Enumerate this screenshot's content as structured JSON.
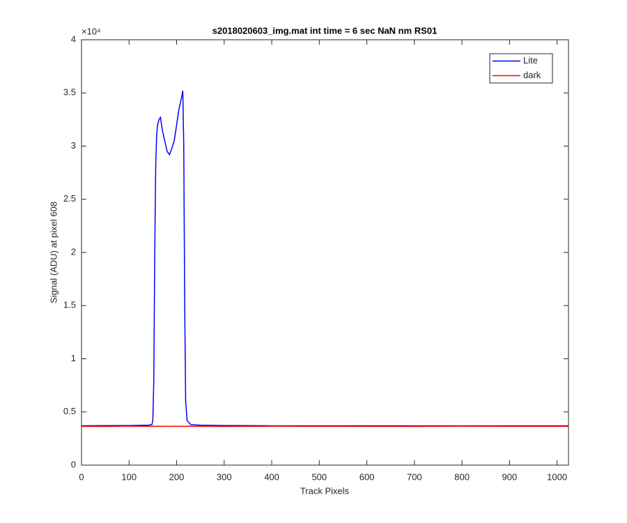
{
  "chart_data": {
    "type": "line",
    "title": "s2018020603_img.mat int time = 6 sec  NaN nm RS01",
    "x_label": "Track Pixels",
    "y_label": "Signal (ADU) at pixel 608",
    "y_exponent_label": "×10⁴",
    "x": [
      0,
      50,
      100,
      140,
      148,
      150,
      152,
      154,
      156,
      158,
      160,
      163,
      166,
      170,
      175,
      180,
      185,
      190,
      195,
      200,
      205,
      210,
      213,
      215,
      217,
      219,
      222,
      230,
      250,
      300,
      400,
      500,
      600,
      700,
      800,
      900,
      1000,
      1024
    ],
    "series": [
      {
        "name": "Lite",
        "color": "#0000ff",
        "values": [
          3700,
          3710,
          3720,
          3750,
          3800,
          4200,
          8000,
          20000,
          28000,
          31000,
          32000,
          32500,
          32700,
          31500,
          30500,
          29500,
          29200,
          29800,
          30500,
          32000,
          33500,
          34500,
          35200,
          30000,
          15000,
          6000,
          4200,
          3800,
          3750,
          3720,
          3700,
          3690,
          3700,
          3690,
          3690,
          3690,
          3690,
          3690
        ]
      },
      {
        "name": "dark",
        "color": "#ff0000",
        "values": [
          3650,
          3640,
          3660,
          3650,
          3650,
          3640,
          3660,
          3650,
          3650,
          3640,
          3660,
          3650,
          3650,
          3640,
          3660,
          3650,
          3650,
          3640,
          3660,
          3650,
          3650,
          3640,
          3660,
          3650,
          3650,
          3640,
          3660,
          3650,
          3650,
          3640,
          3660,
          3650,
          3650,
          3640,
          3660,
          3650,
          3650,
          3650
        ]
      }
    ],
    "xlim": [
      0,
      1024
    ],
    "xticks": [
      0,
      100,
      200,
      300,
      400,
      500,
      600,
      700,
      800,
      900,
      1000
    ],
    "ylim": [
      0,
      40000
    ],
    "yticks": [
      {
        "value": 0,
        "label": "0"
      },
      {
        "value": 5000,
        "label": "0.5"
      },
      {
        "value": 10000,
        "label": "1"
      },
      {
        "value": 15000,
        "label": "1.5"
      },
      {
        "value": 20000,
        "label": "2"
      },
      {
        "value": 25000,
        "label": "2.5"
      },
      {
        "value": 30000,
        "label": "3"
      },
      {
        "value": 35000,
        "label": "3.5"
      },
      {
        "value": 40000,
        "label": "4"
      }
    ],
    "grid": false,
    "legend": "upper right"
  }
}
